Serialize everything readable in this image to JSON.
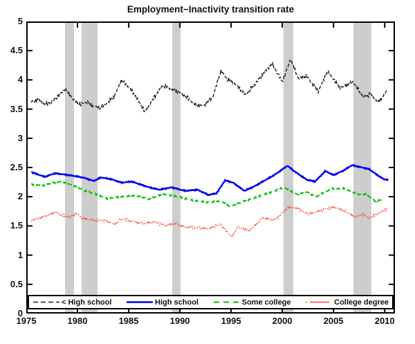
{
  "title": "Employment−Inactivity transition rate",
  "colors": {
    "recession_band": "#cdcdcd",
    "axis": "#000000",
    "background": "#ffffff"
  },
  "recession_bands": [
    {
      "start": 1978.78,
      "end": 1979.66
    },
    {
      "start": 1980.4,
      "end": 1981.96
    },
    {
      "start": 1989.25,
      "end": 1990.06
    },
    {
      "start": 2000.12,
      "end": 2001.07
    },
    {
      "start": 2006.95,
      "end": 2008.7
    }
  ],
  "chart_data": {
    "type": "line",
    "title": "Employment−Inactivity transition rate",
    "xlabel": "",
    "ylabel": "",
    "xlim": [
      1975,
      2011
    ],
    "ylim": [
      0,
      5
    ],
    "grid": false,
    "legend_position": "south-inside",
    "x_tick_values": [
      1975,
      1980,
      1985,
      1990,
      1995,
      2000,
      2005,
      2010
    ],
    "x_tick_labels": [
      "1975",
      "1980",
      "1985",
      "1990",
      "1995",
      "2000",
      "2005",
      "2010"
    ],
    "y_tick_values": [
      0,
      0.5,
      1,
      1.5,
      2,
      2.5,
      3,
      3.5,
      4,
      4.5,
      5
    ],
    "y_tick_labels": [
      "0",
      "0.5",
      "1",
      "1.5",
      "2",
      "2.5",
      "3",
      "3.5",
      "4",
      "4.5",
      "5"
    ],
    "series": [
      {
        "name": "< High school",
        "color": "#1c1c1c",
        "line_width": 1.4,
        "dash": "5,2.5",
        "legend_dash": "7,4",
        "jitter": 0.045,
        "points": [
          [
            1975.5,
            3.62
          ],
          [
            1976.2,
            3.67
          ],
          [
            1976.8,
            3.58
          ],
          [
            1977.5,
            3.62
          ],
          [
            1978.0,
            3.7
          ],
          [
            1978.8,
            3.85
          ],
          [
            1979.6,
            3.66
          ],
          [
            1980.3,
            3.58
          ],
          [
            1980.9,
            3.62
          ],
          [
            1981.5,
            3.55
          ],
          [
            1982.2,
            3.52
          ],
          [
            1983.0,
            3.62
          ],
          [
            1983.6,
            3.72
          ],
          [
            1984.3,
            4.0
          ],
          [
            1985.0,
            3.88
          ],
          [
            1985.6,
            3.74
          ],
          [
            1986.6,
            3.45
          ],
          [
            1987.5,
            3.7
          ],
          [
            1988.3,
            3.9
          ],
          [
            1989.0,
            3.86
          ],
          [
            1989.8,
            3.8
          ],
          [
            1990.8,
            3.68
          ],
          [
            1991.5,
            3.58
          ],
          [
            1992.3,
            3.55
          ],
          [
            1993.2,
            3.7
          ],
          [
            1994.0,
            4.15
          ],
          [
            1994.6,
            4.02
          ],
          [
            1995.3,
            3.95
          ],
          [
            1996.4,
            3.74
          ],
          [
            1997.2,
            3.9
          ],
          [
            1998.2,
            4.12
          ],
          [
            1999.0,
            4.28
          ],
          [
            2000.0,
            3.97
          ],
          [
            2000.8,
            4.35
          ],
          [
            2001.6,
            4.02
          ],
          [
            2002.4,
            4.06
          ],
          [
            2003.5,
            3.8
          ],
          [
            2004.4,
            4.14
          ],
          [
            2005.7,
            3.86
          ],
          [
            2006.9,
            3.97
          ],
          [
            2007.9,
            3.7
          ],
          [
            2008.6,
            3.76
          ],
          [
            2009.4,
            3.62
          ],
          [
            2010.2,
            3.8
          ]
        ]
      },
      {
        "name": "High school",
        "color": "#0000ee",
        "line_width": 2.4,
        "dash": "",
        "legend_dash": "",
        "jitter": 0.015,
        "points": [
          [
            1975.5,
            2.42
          ],
          [
            1976.8,
            2.34
          ],
          [
            1977.8,
            2.4
          ],
          [
            1978.7,
            2.38
          ],
          [
            1979.5,
            2.36
          ],
          [
            1980.5,
            2.33
          ],
          [
            1981.6,
            2.27
          ],
          [
            1982.3,
            2.33
          ],
          [
            1983.3,
            2.3
          ],
          [
            1984.3,
            2.24
          ],
          [
            1985.3,
            2.26
          ],
          [
            1986.3,
            2.2
          ],
          [
            1987.0,
            2.16
          ],
          [
            1988.0,
            2.12
          ],
          [
            1989.2,
            2.16
          ],
          [
            1990.5,
            2.1
          ],
          [
            1991.7,
            2.12
          ],
          [
            1992.8,
            2.03
          ],
          [
            1993.6,
            2.06
          ],
          [
            1994.4,
            2.28
          ],
          [
            1995.2,
            2.24
          ],
          [
            1996.3,
            2.1
          ],
          [
            1997.3,
            2.18
          ],
          [
            1998.3,
            2.28
          ],
          [
            1999.3,
            2.38
          ],
          [
            2000.5,
            2.53
          ],
          [
            2001.3,
            2.42
          ],
          [
            2002.4,
            2.29
          ],
          [
            2003.2,
            2.26
          ],
          [
            2004.2,
            2.44
          ],
          [
            2005.0,
            2.37
          ],
          [
            2006.0,
            2.45
          ],
          [
            2006.8,
            2.54
          ],
          [
            2007.8,
            2.5
          ],
          [
            2008.5,
            2.47
          ],
          [
            2009.2,
            2.38
          ],
          [
            2009.9,
            2.3
          ],
          [
            2010.4,
            2.29
          ]
        ]
      },
      {
        "name": "Some college",
        "color": "#00c000",
        "line_width": 1.9,
        "dash": "7,5",
        "legend_dash": "8,6",
        "jitter": 0.022,
        "points": [
          [
            1975.5,
            2.21
          ],
          [
            1976.5,
            2.19
          ],
          [
            1977.4,
            2.23
          ],
          [
            1978.4,
            2.26
          ],
          [
            1979.5,
            2.2
          ],
          [
            1980.5,
            2.12
          ],
          [
            1981.8,
            2.04
          ],
          [
            1982.9,
            1.97
          ],
          [
            1984.3,
            2.0
          ],
          [
            1985.6,
            2.02
          ],
          [
            1987.0,
            1.96
          ],
          [
            1988.3,
            2.04
          ],
          [
            1989.3,
            2.02
          ],
          [
            1990.5,
            1.97
          ],
          [
            1991.9,
            1.92
          ],
          [
            1992.8,
            1.9
          ],
          [
            1994.0,
            1.93
          ],
          [
            1994.9,
            1.83
          ],
          [
            1995.9,
            1.9
          ],
          [
            1996.9,
            1.96
          ],
          [
            1997.9,
            2.02
          ],
          [
            1999.0,
            2.08
          ],
          [
            2000.1,
            2.16
          ],
          [
            2001.5,
            2.04
          ],
          [
            2002.4,
            2.08
          ],
          [
            2003.3,
            2.0
          ],
          [
            2004.9,
            2.14
          ],
          [
            2006.0,
            2.14
          ],
          [
            2007.4,
            2.04
          ],
          [
            2008.2,
            2.04
          ],
          [
            2009.1,
            1.92
          ],
          [
            2009.9,
            1.96
          ]
        ]
      },
      {
        "name": "College degree",
        "color": "#ff3b3b",
        "line_width": 1.3,
        "dash": "2,2.2",
        "legend_dash": "2,4,28,4",
        "jitter": 0.032,
        "points": [
          [
            1975.5,
            1.6
          ],
          [
            1976.5,
            1.64
          ],
          [
            1977.3,
            1.7
          ],
          [
            1977.8,
            1.74
          ],
          [
            1978.5,
            1.68
          ],
          [
            1979.3,
            1.65
          ],
          [
            1979.9,
            1.71
          ],
          [
            1980.6,
            1.62
          ],
          [
            1981.6,
            1.6
          ],
          [
            1982.7,
            1.59
          ],
          [
            1983.6,
            1.53
          ],
          [
            1984.3,
            1.62
          ],
          [
            1985.3,
            1.58
          ],
          [
            1986.3,
            1.54
          ],
          [
            1987.4,
            1.57
          ],
          [
            1988.5,
            1.51
          ],
          [
            1989.7,
            1.54
          ],
          [
            1990.5,
            1.48
          ],
          [
            1991.9,
            1.47
          ],
          [
            1992.8,
            1.45
          ],
          [
            1993.9,
            1.53
          ],
          [
            1994.7,
            1.38
          ],
          [
            1995.1,
            1.31
          ],
          [
            1995.6,
            1.48
          ],
          [
            1996.2,
            1.45
          ],
          [
            1996.8,
            1.42
          ],
          [
            1998.1,
            1.64
          ],
          [
            1999.3,
            1.6
          ],
          [
            2000.6,
            1.82
          ],
          [
            2001.5,
            1.8
          ],
          [
            2002.4,
            1.71
          ],
          [
            2003.0,
            1.72
          ],
          [
            2004.4,
            1.8
          ],
          [
            2005.1,
            1.82
          ],
          [
            2006.2,
            1.75
          ],
          [
            2007.1,
            1.65
          ],
          [
            2008.0,
            1.7
          ],
          [
            2008.4,
            1.63
          ],
          [
            2009.3,
            1.7
          ],
          [
            2009.9,
            1.77
          ],
          [
            2010.3,
            1.79
          ]
        ]
      }
    ]
  }
}
